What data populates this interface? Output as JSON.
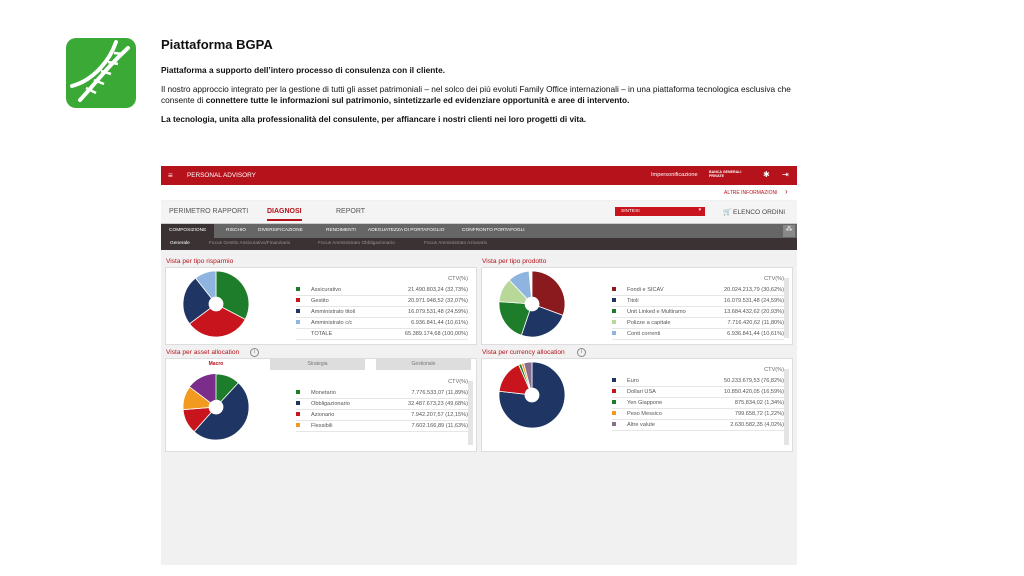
{
  "header": {
    "title": "Piattaforma BGPA",
    "subtitle": "Piattaforma a supporto dell’intero processo di consulenza  con il cliente.",
    "intro": "Il nostro approccio integrato per la gestione di tutti gli asset patrimoniali – nel solco dei più evoluti Family Office internazionali – in una piattaforma  tecnologica esclusiva che consente di ",
    "intro_bold": "connettere tutte le informazioni  sul patrimonio, sintetizzarle ed evidenziare opportunità e aree di intervento.",
    "closing": "La tecnologia,  unita alla  professionalità  del consulente, per affiancare  i nostri clienti nei loro progetti di vita."
  },
  "app": {
    "brand": "PERSONAL ADVISORY",
    "impersonation": "Impersonificazione",
    "bank": "BANCA GENERALI PRIVATE",
    "more_info": "ALTRE INFORMAZIONI",
    "tabs": [
      "PERIMETRO RAPPORTI",
      "DIAGNOSI",
      "REPORT"
    ],
    "select": "SINTESI",
    "orders": "ELENCO ORDINI",
    "subtabs": [
      "COMPOSIZIONE",
      "RISCHIO",
      "DIVERSIFICAZIONE",
      "RENDIMENTI",
      "ADEGUATEZZA DI PORTAFOGLIO",
      "CONFRONTO PORTAFOGLI"
    ],
    "focus_tabs": [
      "Generale",
      "Focus Gestito Assicurativo/Finanziario",
      "Focus Amministrato Obbligazionario",
      "Focus Amministrato Azionario"
    ],
    "panels": [
      {
        "title": "Vista per tipo risparmio",
        "column_header": "CTV(%)",
        "rows": [
          {
            "label": "Assicurativo",
            "amount_label": "21.490.803,24 (32,73%)",
            "share": 32.73,
            "color": "#1e7d2b"
          },
          {
            "label": "Gestito",
            "amount_label": "20.971.948,52 (32,07%)",
            "share": 32.07,
            "color": "#c8151d"
          },
          {
            "label": "Amministrato titoli",
            "amount_label": "16.079.531,48 (24,59%)",
            "share": 24.59,
            "color": "#1f3563"
          },
          {
            "label": "Amministrato c/c",
            "amount_label": "6.936.841,44 (10,61%)",
            "share": 10.61,
            "color": "#8fb4e0"
          }
        ],
        "total": {
          "label": "TOTALE",
          "amount_label": "65.389.174,68 (100,00%)"
        }
      },
      {
        "title": "Vista per tipo prodotto",
        "column_header": "CTV(%)",
        "rows": [
          {
            "label": "Fondi e SICAV",
            "amount_label": "20.024.213,79 (30,62%)",
            "share": 30.62,
            "color": "#8b1a1f"
          },
          {
            "label": "Titoli",
            "amount_label": "16.079.531,48 (24,59%)",
            "share": 24.59,
            "color": "#1f3563"
          },
          {
            "label": "Unit Linked e Multiramo",
            "amount_label": "13.684.432,62 (20,93%)",
            "share": 20.93,
            "color": "#1e7d2b"
          },
          {
            "label": "Polizze a capitale",
            "amount_label": "7.716.420,62 (11,80%)",
            "share": 11.8,
            "color": "#b8d89a"
          },
          {
            "label": "Conti correnti",
            "amount_label": "6.936.841,44 (10,61%)",
            "share": 10.61,
            "color": "#8fb4e0"
          }
        ]
      },
      {
        "title": "Vista per asset allocation",
        "column_header": "CTV(%)",
        "tabs": [
          "Macro",
          "Strategia",
          "Gestionale"
        ],
        "rows": [
          {
            "label": "Monetario",
            "amount_label": "7.776.533,07 (11,89%)",
            "share": 11.89,
            "color": "#1e7d2b"
          },
          {
            "label": "Obbligazionario",
            "amount_label": "32.487.673,23 (49,68%)",
            "share": 49.68,
            "color": "#1f3563"
          },
          {
            "label": "Azionario",
            "amount_label": "7.942.207,57 (12,15%)",
            "share": 12.15,
            "color": "#c8151d"
          },
          {
            "label": "Flessibili",
            "amount_label": "7.602.166,89 (11,63%)",
            "share": 11.63,
            "color": "#f29a1f"
          }
        ]
      },
      {
        "title": "Vista per currency allocation",
        "column_header": "CTV(%)",
        "rows": [
          {
            "label": "Euro",
            "amount_label": "50.233.679,53 (76,82%)",
            "share": 76.82,
            "color": "#1f3563"
          },
          {
            "label": "Dollari USA",
            "amount_label": "10.850.420,05 (16,59%)",
            "share": 16.59,
            "color": "#c8151d"
          },
          {
            "label": "Yen Giappone",
            "amount_label": "875.834,02 (1,34%)",
            "share": 1.34,
            "color": "#1e7d2b"
          },
          {
            "label": "Peso Messico",
            "amount_label": "799.658,72 (1,22%)",
            "share": 1.22,
            "color": "#f29a1f"
          },
          {
            "label": "Altre valute",
            "amount_label": "2.630.582,35 (4,02%)",
            "share": 4.02,
            "color": "#8a6d8e"
          }
        ]
      }
    ]
  }
}
